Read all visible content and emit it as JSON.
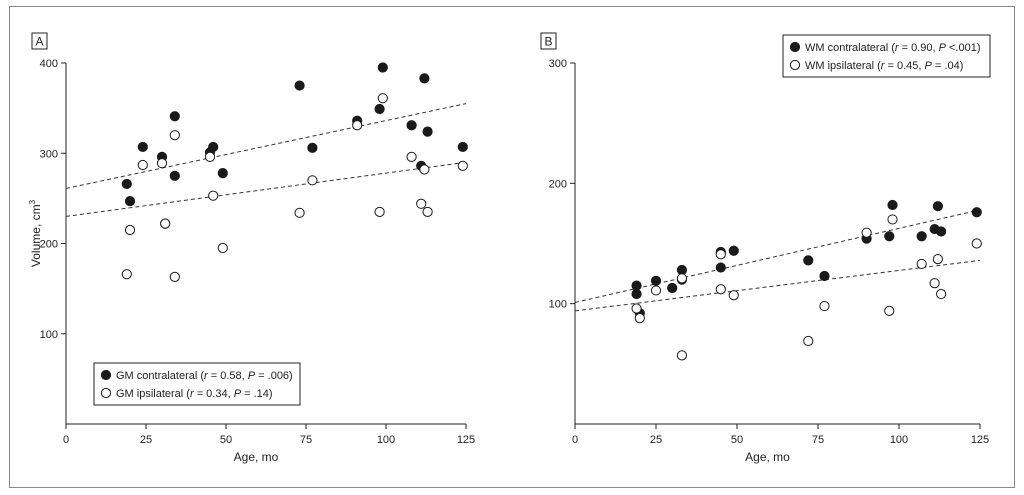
{
  "chart_data": [
    {
      "type": "scatter",
      "panel_label": "A",
      "xlabel": "Age, mo",
      "ylabel": "Volume, cm",
      "ylabel_sup": "3",
      "xlim": [
        0,
        125
      ],
      "ylim": [
        0,
        400
      ],
      "xticks": [
        0,
        25,
        50,
        75,
        100,
        125
      ],
      "yticks": [
        100,
        200,
        300,
        400
      ],
      "legend_position": "bottom-left",
      "series": [
        {
          "name": "GM contralateral",
          "stat_r": "0.58",
          "stat_p": ".006",
          "marker": "filled",
          "points": [
            [
              19,
              266
            ],
            [
              20,
              247
            ],
            [
              24,
              307
            ],
            [
              30,
              296
            ],
            [
              31,
              222
            ],
            [
              34,
              275
            ],
            [
              34,
              341
            ],
            [
              45,
              301
            ],
            [
              46,
              307
            ],
            [
              49,
              278
            ],
            [
              73,
              375
            ],
            [
              77,
              306
            ],
            [
              91,
              336
            ],
            [
              98,
              349
            ],
            [
              99,
              395
            ],
            [
              108,
              331
            ],
            [
              111,
              286
            ],
            [
              112,
              383
            ],
            [
              113,
              324
            ],
            [
              124,
              307
            ]
          ],
          "trend": [
            [
              0,
              261
            ],
            [
              125,
              355
            ]
          ]
        },
        {
          "name": "GM ipsilateral",
          "stat_r": "0.34",
          "stat_p": ".14",
          "marker": "open",
          "points": [
            [
              19,
              166
            ],
            [
              20,
              215
            ],
            [
              24,
              287
            ],
            [
              30,
              289
            ],
            [
              31,
              222
            ],
            [
              34,
              320
            ],
            [
              34,
              163
            ],
            [
              45,
              296
            ],
            [
              46,
              253
            ],
            [
              49,
              195
            ],
            [
              73,
              234
            ],
            [
              77,
              270
            ],
            [
              91,
              331
            ],
            [
              98,
              235
            ],
            [
              99,
              361
            ],
            [
              108,
              296
            ],
            [
              111,
              244
            ],
            [
              112,
              282
            ],
            [
              113,
              235
            ],
            [
              124,
              286
            ]
          ],
          "trend": [
            [
              0,
              230
            ],
            [
              125,
              290
            ]
          ]
        }
      ]
    },
    {
      "type": "scatter",
      "panel_label": "B",
      "xlabel": "Age, mo",
      "xlim": [
        0,
        125
      ],
      "ylim": [
        0,
        300
      ],
      "xticks": [
        0,
        25,
        50,
        75,
        100,
        125
      ],
      "yticks": [
        100,
        200,
        300
      ],
      "legend_position": "top-right",
      "series": [
        {
          "name": "WM contralateral",
          "stat_r": "0.90",
          "stat_p": "<.001",
          "marker": "filled",
          "points": [
            [
              19,
              115
            ],
            [
              19,
              108
            ],
            [
              20,
              92
            ],
            [
              25,
              119
            ],
            [
              30,
              113
            ],
            [
              33,
              128
            ],
            [
              33,
              120
            ],
            [
              45,
              143
            ],
            [
              45,
              130
            ],
            [
              49,
              144
            ],
            [
              72,
              136
            ],
            [
              77,
              123
            ],
            [
              90,
              154
            ],
            [
              97,
              156
            ],
            [
              98,
              182
            ],
            [
              107,
              156
            ],
            [
              111,
              162
            ],
            [
              112,
              181
            ],
            [
              113,
              160
            ],
            [
              124,
              176
            ]
          ],
          "trend": [
            [
              0,
              101
            ],
            [
              125,
              178
            ]
          ]
        },
        {
          "name": "WM ipsilateral",
          "stat_r": "0.45",
          "stat_p": ".04",
          "marker": "open",
          "points": [
            [
              19,
              96
            ],
            [
              20,
              88
            ],
            [
              25,
              111
            ],
            [
              33,
              57
            ],
            [
              33,
              121
            ],
            [
              45,
              141
            ],
            [
              45,
              112
            ],
            [
              49,
              107
            ],
            [
              72,
              69
            ],
            [
              77,
              98
            ],
            [
              90,
              159
            ],
            [
              97,
              94
            ],
            [
              98,
              170
            ],
            [
              107,
              133
            ],
            [
              111,
              117
            ],
            [
              112,
              137
            ],
            [
              113,
              108
            ],
            [
              124,
              150
            ]
          ],
          "trend": [
            [
              0,
              94
            ],
            [
              125,
              136
            ]
          ]
        }
      ]
    }
  ],
  "style": {
    "point_color": "#1a1a1a",
    "axis_color": "#222222",
    "line_color": "#333333"
  }
}
